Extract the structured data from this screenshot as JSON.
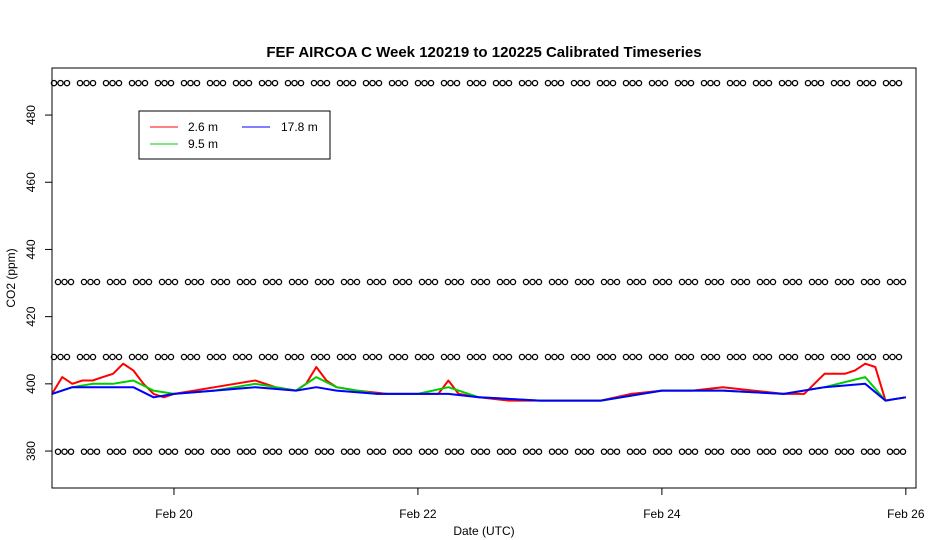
{
  "chart_data": {
    "type": "line",
    "title": "FEF AIRCOA C  Week 120219 to 120225  Calibrated Timeseries",
    "xlabel": "Date (UTC)",
    "ylabel": "CO2 (ppm)",
    "x_domain": [
      "2012-02-19T00:00",
      "2012-02-26T02:00"
    ],
    "ylim": [
      369,
      494
    ],
    "x_ticks": [
      {
        "date": "2012-02-20",
        "label": "Feb 20"
      },
      {
        "date": "2012-02-22",
        "label": "Feb 22"
      },
      {
        "date": "2012-02-24",
        "label": "Feb 24"
      },
      {
        "date": "2012-02-26",
        "label": "Feb 26"
      }
    ],
    "y_ticks": [
      380,
      400,
      420,
      440,
      460,
      480
    ],
    "grid": false,
    "legend_position": "top-left",
    "legend": [
      {
        "label": "2.6 m",
        "color": "#ff0000"
      },
      {
        "label": "9.5 m",
        "color": "#00cd00"
      },
      {
        "label": "17.8 m",
        "color": "#0000ff"
      }
    ],
    "calibration_markers": {
      "symbol": "open circle",
      "levels": [
        489.5,
        430.3,
        408.0,
        379.8
      ],
      "x_range": [
        "2012-02-19T00:00",
        "2012-02-26T00:00"
      ]
    },
    "series": [
      {
        "name": "2.6 m",
        "color": "#ff0000",
        "x": [
          "2012-02-19T00:00",
          "2012-02-19T02:00",
          "2012-02-19T04:00",
          "2012-02-19T06:00",
          "2012-02-19T08:00",
          "2012-02-19T10:00",
          "2012-02-19T12:00",
          "2012-02-19T14:00",
          "2012-02-19T16:00",
          "2012-02-19T18:00",
          "2012-02-19T20:00",
          "2012-02-19T22:00",
          "2012-02-20T00:00",
          "2012-02-20T04:00",
          "2012-02-20T08:00",
          "2012-02-20T12:00",
          "2012-02-20T16:00",
          "2012-02-20T20:00",
          "2012-02-21T00:00",
          "2012-02-21T02:00",
          "2012-02-21T04:00",
          "2012-02-21T06:00",
          "2012-02-21T08:00",
          "2012-02-21T12:00",
          "2012-02-21T18:00",
          "2012-02-22T00:00",
          "2012-02-22T04:00",
          "2012-02-22T06:00",
          "2012-02-22T08:00",
          "2012-02-22T12:00",
          "2012-02-22T18:00",
          "2012-02-23T00:00",
          "2012-02-23T06:00",
          "2012-02-23T12:00",
          "2012-02-23T18:00",
          "2012-02-24T00:00",
          "2012-02-24T06:00",
          "2012-02-24T12:00",
          "2012-02-24T18:00",
          "2012-02-25T00:00",
          "2012-02-25T04:00",
          "2012-02-25T08:00",
          "2012-02-25T12:00",
          "2012-02-25T14:00",
          "2012-02-25T16:00",
          "2012-02-25T18:00",
          "2012-02-25T20:00",
          "2012-02-26T00:00"
        ],
        "y": [
          397,
          402,
          400,
          401,
          401,
          402,
          403,
          406,
          404,
          400,
          397,
          396,
          397,
          398,
          399,
          400,
          401,
          399,
          398,
          400,
          405,
          401,
          399,
          398,
          397,
          397,
          397,
          401,
          397,
          396,
          395,
          395,
          395,
          395,
          397,
          398,
          398,
          399,
          398,
          397,
          397,
          403,
          403,
          404,
          406,
          405,
          395,
          396
        ]
      },
      {
        "name": "9.5 m",
        "color": "#00cd00",
        "x": [
          "2012-02-19T00:00",
          "2012-02-19T04:00",
          "2012-02-19T08:00",
          "2012-02-19T12:00",
          "2012-02-19T16:00",
          "2012-02-19T20:00",
          "2012-02-20T00:00",
          "2012-02-20T08:00",
          "2012-02-20T16:00",
          "2012-02-21T00:00",
          "2012-02-21T04:00",
          "2012-02-21T08:00",
          "2012-02-21T16:00",
          "2012-02-22T00:00",
          "2012-02-22T06:00",
          "2012-02-22T12:00",
          "2012-02-23T00:00",
          "2012-02-23T12:00",
          "2012-02-24T00:00",
          "2012-02-24T12:00",
          "2012-02-25T00:00",
          "2012-02-25T08:00",
          "2012-02-25T16:00",
          "2012-02-25T20:00",
          "2012-02-26T00:00"
        ],
        "y": [
          397,
          399,
          400,
          400,
          401,
          398,
          397,
          398,
          400,
          398,
          402,
          399,
          397,
          397,
          399,
          396,
          395,
          395,
          398,
          398,
          397,
          399,
          402,
          395,
          396
        ]
      },
      {
        "name": "17.8 m",
        "color": "#0000ff",
        "x": [
          "2012-02-19T00:00",
          "2012-02-19T04:00",
          "2012-02-19T08:00",
          "2012-02-19T12:00",
          "2012-02-19T16:00",
          "2012-02-19T20:00",
          "2012-02-20T00:00",
          "2012-02-20T08:00",
          "2012-02-20T16:00",
          "2012-02-21T00:00",
          "2012-02-21T04:00",
          "2012-02-21T08:00",
          "2012-02-21T16:00",
          "2012-02-22T00:00",
          "2012-02-22T06:00",
          "2012-02-22T12:00",
          "2012-02-23T00:00",
          "2012-02-23T12:00",
          "2012-02-24T00:00",
          "2012-02-24T12:00",
          "2012-02-25T00:00",
          "2012-02-25T08:00",
          "2012-02-25T16:00",
          "2012-02-25T20:00",
          "2012-02-26T00:00"
        ],
        "y": [
          397,
          399,
          399,
          399,
          399,
          396,
          397,
          398,
          399,
          398,
          399,
          398,
          397,
          397,
          397,
          396,
          395,
          395,
          398,
          398,
          397,
          399,
          400,
          395,
          396
        ]
      }
    ]
  }
}
